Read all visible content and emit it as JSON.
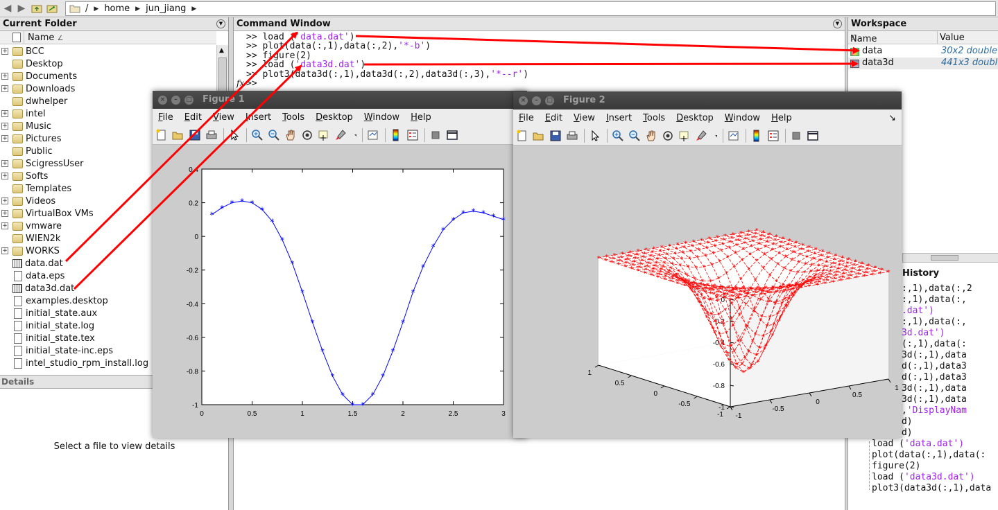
{
  "pathbar": {
    "crumbs": [
      "/",
      "home",
      "jun_jiang"
    ]
  },
  "current_folder": {
    "title": "Current Folder",
    "column_name": "Name",
    "sort_indicator": "∠",
    "items": [
      {
        "label": "BCC",
        "type": "folder",
        "expandable": true
      },
      {
        "label": "Desktop",
        "type": "folder",
        "expandable": false
      },
      {
        "label": "Documents",
        "type": "folder",
        "expandable": true
      },
      {
        "label": "Downloads",
        "type": "folder",
        "expandable": true
      },
      {
        "label": "dwhelper",
        "type": "folder",
        "expandable": false
      },
      {
        "label": "intel",
        "type": "folder",
        "expandable": true
      },
      {
        "label": "Music",
        "type": "folder",
        "expandable": true
      },
      {
        "label": "Pictures",
        "type": "folder",
        "expandable": true
      },
      {
        "label": "Public",
        "type": "folder",
        "expandable": false
      },
      {
        "label": "ScigressUser",
        "type": "folder",
        "expandable": true
      },
      {
        "label": "Softs",
        "type": "folder",
        "expandable": true
      },
      {
        "label": "Templates",
        "type": "folder",
        "expandable": false
      },
      {
        "label": "Videos",
        "type": "folder",
        "expandable": true
      },
      {
        "label": "VirtualBox VMs",
        "type": "folder",
        "expandable": true
      },
      {
        "label": "vmware",
        "type": "folder",
        "expandable": true
      },
      {
        "label": "WIEN2k",
        "type": "folder",
        "expandable": false
      },
      {
        "label": "WORKS",
        "type": "folder",
        "expandable": true
      },
      {
        "label": "data.dat",
        "type": "dat",
        "expandable": false
      },
      {
        "label": "data.eps",
        "type": "file",
        "expandable": false
      },
      {
        "label": "data3d.dat",
        "type": "dat",
        "expandable": false
      },
      {
        "label": "examples.desktop",
        "type": "file",
        "expandable": false
      },
      {
        "label": "initial_state.aux",
        "type": "file",
        "expandable": false
      },
      {
        "label": "initial_state.log",
        "type": "file",
        "expandable": false
      },
      {
        "label": "initial_state.tex",
        "type": "file",
        "expandable": false
      },
      {
        "label": "initial_state-inc.eps",
        "type": "file",
        "expandable": false
      },
      {
        "label": "intel_studio_rpm_install.log",
        "type": "file",
        "expandable": false
      }
    ],
    "details_title": "Details",
    "details_message": "Select a file to view details"
  },
  "command_window": {
    "title": "Command Window",
    "lines": [
      {
        "prompt": ">> ",
        "code": "load (",
        "str": "'data.dat'",
        "tail": ")"
      },
      {
        "prompt": ">> ",
        "code": "plot(data(:,1),data(:,2),",
        "str": "'*-b'",
        "tail": ")"
      },
      {
        "prompt": ">> ",
        "code": "figure(2)",
        "str": "",
        "tail": ""
      },
      {
        "prompt": ">> ",
        "code": "load (",
        "str": "'data3d.dat'",
        "tail": ")"
      },
      {
        "prompt": ">> ",
        "code": "plot3(data3d(:,1),data3d(:,2),data3d(:,3),",
        "str": "'*--r'",
        "tail": ")"
      },
      {
        "prompt": ">> ",
        "code": "",
        "str": "",
        "tail": ""
      }
    ],
    "fx_label": "fx"
  },
  "workspace": {
    "title": "Workspace",
    "col_name": "Name",
    "col_value": "Value",
    "variables": [
      {
        "name": "data",
        "value": "30x2 double"
      },
      {
        "name": "data3d",
        "value": "441x3 double"
      }
    ]
  },
  "history": {
    "title": "History",
    "lines": [
      {
        "code": "(data(:,1),data(:,2",
        "str": ""
      },
      {
        "code": "(data(:,1),data(:,",
        "str": ""
      },
      {
        "code": "(",
        "str": "'data.dat')"
      },
      {
        "code": "(data(:,1),data(:,",
        "str": ""
      },
      {
        "code": "(",
        "str": "'data3d.dat')"
      },
      {
        "code": "3(data(:,1),data(:",
        "str": ""
      },
      {
        "code": "3(data3d(:,1),data",
        "str": ""
      },
      {
        "code": "(data3d(:,1),data3",
        "str": ""
      },
      {
        "code": "(data3d(:,1),data3",
        "str": ""
      },
      {
        "code": "3(data3d(:,1),data",
        "str": ""
      },
      {
        "code": "3(data3d(:,1),data",
        "str": ""
      },
      {
        "code": "data3d,",
        "str": "'DisplayNam"
      },
      {
        "code": "(data3d)",
        "str": ""
      },
      {
        "code": "(data3d)",
        "str": ""
      },
      {
        "code": "load (",
        "str": "'data.dat')"
      },
      {
        "code": "plot(data(:,1),data(:",
        "str": ""
      },
      {
        "code": "figure(2)",
        "str": ""
      },
      {
        "code": "load (",
        "str": "'data3d.dat')"
      },
      {
        "code": "plot3(data3d(:,1),data",
        "str": ""
      }
    ]
  },
  "figure1": {
    "title": "Figure 1",
    "menu": [
      "File",
      "Edit",
      "View",
      "Insert",
      "Tools",
      "Desktop",
      "Window",
      "Help"
    ]
  },
  "figure2": {
    "title": "Figure 2",
    "menu": [
      "File",
      "Edit",
      "View",
      "Insert",
      "Tools",
      "Desktop",
      "Window",
      "Help"
    ]
  },
  "chart_data": [
    {
      "type": "line",
      "marker": "*",
      "color": "#0000ff",
      "x": [
        0.1,
        0.2,
        0.3,
        0.4,
        0.5,
        0.6,
        0.7,
        0.8,
        0.9,
        1.0,
        1.1,
        1.2,
        1.3,
        1.4,
        1.5,
        1.6,
        1.7,
        1.8,
        1.9,
        2.0,
        2.1,
        2.2,
        2.3,
        2.4,
        2.5,
        2.6,
        2.7,
        2.8,
        2.9,
        3.0
      ],
      "y": [
        0.13,
        0.17,
        0.2,
        0.21,
        0.2,
        0.16,
        0.09,
        -0.02,
        -0.16,
        -0.33,
        -0.51,
        -0.68,
        -0.83,
        -0.94,
        -1.0,
        -1.0,
        -0.94,
        -0.83,
        -0.68,
        -0.51,
        -0.33,
        -0.18,
        -0.06,
        0.04,
        0.1,
        0.14,
        0.15,
        0.14,
        0.12,
        0.1
      ],
      "xlim": [
        0,
        3
      ],
      "ylim": [
        -1,
        0.4
      ],
      "xticks": [
        "0",
        "0.5",
        "1",
        "1.5",
        "2",
        "2.5",
        "3"
      ],
      "yticks": [
        "0.4",
        "0.2",
        "0",
        "-0.2",
        "-0.4",
        "-0.6",
        "-0.8",
        "-1"
      ]
    },
    {
      "type": "surface-mesh",
      "marker": "*",
      "line": "dashed",
      "color": "#ff0000",
      "x_range": [
        -1,
        1
      ],
      "y_range": [
        -1,
        1
      ],
      "z_range": [
        -1,
        0
      ],
      "grid_points": 21,
      "zticks": [
        "0",
        "-0.2",
        "-0.4",
        "-0.6",
        "-0.8",
        "-1"
      ],
      "xticks": [
        "-1",
        "-0.5",
        "0",
        "0.5",
        "1"
      ],
      "yticks": [
        "1",
        "0.5",
        "0",
        "-0.5",
        "-1"
      ]
    }
  ],
  "annotations": {
    "arrow_color": "#ff0000"
  }
}
